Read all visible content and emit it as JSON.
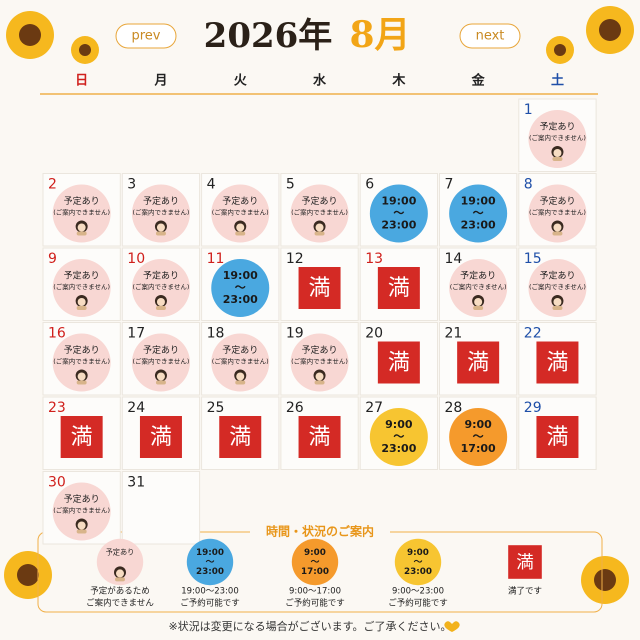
{
  "header": {
    "prev": "prev",
    "year": "2026年",
    "month": "8月",
    "next": "next"
  },
  "weekdays": [
    "日",
    "月",
    "火",
    "水",
    "木",
    "金",
    "土"
  ],
  "first_column": 6,
  "days": [
    {
      "day": 1,
      "kind": "busy",
      "lines": [
        "予定あり",
        "(ご案内できません)"
      ]
    },
    {
      "day": 2,
      "kind": "busy",
      "lines": [
        "予定あり",
        "(ご案内できません)"
      ]
    },
    {
      "day": 3,
      "kind": "busy",
      "lines": [
        "予定あり",
        "(ご案内できません)"
      ]
    },
    {
      "day": 4,
      "kind": "busy",
      "lines": [
        "予定あり",
        "(ご案内できません)"
      ]
    },
    {
      "day": 5,
      "kind": "busy",
      "lines": [
        "予定あり",
        "(ご案内できません)"
      ]
    },
    {
      "day": 6,
      "kind": "time",
      "color": "#4aa8e0",
      "lines": [
        "19:00",
        "～",
        "23:00"
      ]
    },
    {
      "day": 7,
      "kind": "time",
      "color": "#4aa8e0",
      "lines": [
        "19:00",
        "～",
        "23:00"
      ]
    },
    {
      "day": 8,
      "kind": "busy",
      "lines": [
        "予定あり",
        "(ご案内できません)"
      ]
    },
    {
      "day": 9,
      "kind": "busy",
      "lines": [
        "予定あり",
        "(ご案内できません)"
      ]
    },
    {
      "day": 10,
      "kind": "busy",
      "holiday": true,
      "lines": [
        "予定あり",
        "(ご案内できません)"
      ]
    },
    {
      "day": 11,
      "kind": "time",
      "holiday": true,
      "color": "#4aa8e0",
      "lines": [
        "19:00",
        "～",
        "23:00"
      ]
    },
    {
      "day": 12,
      "kind": "full",
      "lines": [
        "満"
      ]
    },
    {
      "day": 13,
      "kind": "full",
      "holiday": true,
      "lines": [
        "満"
      ]
    },
    {
      "day": 14,
      "kind": "busy",
      "lines": [
        "予定あり",
        "(ご案内できません)"
      ]
    },
    {
      "day": 15,
      "kind": "busy",
      "lines": [
        "予定あり",
        "(ご案内できません)"
      ]
    },
    {
      "day": 16,
      "kind": "busy",
      "lines": [
        "予定あり",
        "(ご案内できません)"
      ]
    },
    {
      "day": 17,
      "kind": "busy",
      "lines": [
        "予定あり",
        "(ご案内できません)"
      ]
    },
    {
      "day": 18,
      "kind": "busy",
      "lines": [
        "予定あり",
        "(ご案内できません)"
      ]
    },
    {
      "day": 19,
      "kind": "busy",
      "lines": [
        "予定あり",
        "(ご案内できません)"
      ]
    },
    {
      "day": 20,
      "kind": "full",
      "lines": [
        "満"
      ]
    },
    {
      "day": 21,
      "kind": "full",
      "lines": [
        "満"
      ]
    },
    {
      "day": 22,
      "kind": "full",
      "lines": [
        "満"
      ]
    },
    {
      "day": 23,
      "kind": "full",
      "lines": [
        "満"
      ]
    },
    {
      "day": 24,
      "kind": "full",
      "lines": [
        "満"
      ]
    },
    {
      "day": 25,
      "kind": "full",
      "lines": [
        "満"
      ]
    },
    {
      "day": 26,
      "kind": "full",
      "lines": [
        "満"
      ]
    },
    {
      "day": 27,
      "kind": "time",
      "color": "#f7c531",
      "lines": [
        "9:00",
        "～",
        "23:00"
      ]
    },
    {
      "day": 28,
      "kind": "time",
      "color": "#f59a2c",
      "lines": [
        "9:00",
        "～",
        "17:00"
      ]
    },
    {
      "day": 29,
      "kind": "full",
      "lines": [
        "満"
      ]
    },
    {
      "day": 30,
      "kind": "busy",
      "lines": [
        "予定あり",
        "(ご案内できません)"
      ]
    },
    {
      "day": 31,
      "kind": "none",
      "lines": []
    }
  ],
  "legend": {
    "title": "時間・状況のご案内",
    "items": [
      {
        "kind": "busy",
        "lines": [
          "予定あり"
        ],
        "caption": [
          "予定があるため",
          "ご案内できません"
        ]
      },
      {
        "kind": "time",
        "color": "#4aa8e0",
        "lines": [
          "19:00",
          "～",
          "23:00"
        ],
        "caption": [
          "19:00～23:00",
          "ご予約可能です"
        ]
      },
      {
        "kind": "time",
        "color": "#f59a2c",
        "lines": [
          "9:00",
          "～",
          "17:00"
        ],
        "caption": [
          "9:00～17:00",
          "ご予約可能です"
        ]
      },
      {
        "kind": "time",
        "color": "#f7c531",
        "lines": [
          "9:00",
          "～",
          "23:00"
        ],
        "caption": [
          "9:00～23:00",
          "ご予約可能です"
        ]
      },
      {
        "kind": "full",
        "lines": [
          "満"
        ],
        "caption": [
          "満了です"
        ]
      }
    ]
  },
  "footer": "※状況は変更になる場合がございます。ご了承ください。"
}
